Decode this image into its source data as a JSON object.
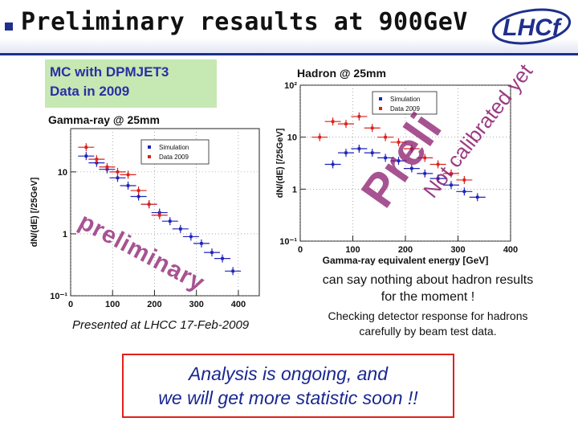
{
  "header": {
    "title": "Preliminary resaults at 900GeV",
    "logo_text": "LHCf"
  },
  "mc_box": {
    "line1": "MC with DPMJET3",
    "line2": "Data in 2009"
  },
  "presented": "Presented at LHCC 17-Feb-2009",
  "watermarks": {
    "prelim_left": "preliminary",
    "prelim_right": "Preli",
    "not_calibrated": "Not calibrated yet"
  },
  "notes": {
    "line1": "can say nothing about hadron results",
    "line2": "for the moment !",
    "check1": "Checking detector response for hadrons",
    "check2": "carefully by beam test data."
  },
  "analysis": {
    "line1": "Analysis is ongoing, and",
    "line2": "we will get more statistic soon !!"
  },
  "colors": {
    "simulation": "#1f22b8",
    "data": "#d9221c",
    "title_blue": "#1f2f8c",
    "mc_box": "#c6e8b2",
    "watermark": "#8a1a6e"
  },
  "chart_data": [
    {
      "type": "scatter",
      "title": "Gamma-ray @ 25mm",
      "xlabel": "",
      "ylabel": "dN/(dE) [/25GeV]",
      "log_y": true,
      "xlim": [
        0,
        450
      ],
      "ylim": [
        0.1,
        50
      ],
      "xticks": [
        0,
        100,
        200,
        300,
        400
      ],
      "yticks": [
        {
          "v": 10,
          "label": "10"
        },
        {
          "v": 1,
          "label": "1"
        },
        {
          "v": 0.1,
          "label": "10⁻¹"
        }
      ],
      "legend": {
        "placement": "top-right",
        "entries": [
          "Simulation",
          "Data 2009"
        ]
      },
      "series": [
        {
          "name": "Simulation",
          "color": "#1f22b8",
          "points": [
            [
              37,
              18
            ],
            [
              62,
              14
            ],
            [
              87,
              11
            ],
            [
              112,
              8
            ],
            [
              137,
              6
            ],
            [
              162,
              4
            ],
            [
              187,
              3
            ],
            [
              212,
              2.2
            ],
            [
              237,
              1.6
            ],
            [
              262,
              1.2
            ],
            [
              287,
              0.9
            ],
            [
              312,
              0.7
            ],
            [
              337,
              0.5
            ],
            [
              362,
              0.4
            ],
            [
              387,
              0.25
            ]
          ]
        },
        {
          "name": "Data 2009",
          "color": "#d9221c",
          "points": [
            [
              37,
              25
            ],
            [
              62,
              16
            ],
            [
              87,
              12
            ],
            [
              112,
              10
            ],
            [
              137,
              9
            ],
            [
              162,
              5
            ],
            [
              187,
              3
            ],
            [
              212,
              2
            ]
          ]
        }
      ]
    },
    {
      "type": "scatter",
      "title": "Hadron @ 25mm",
      "xlabel": "Gamma-ray equivalent energy [GeV]",
      "ylabel": "dN/(dE) [/25GeV]",
      "log_y": true,
      "xlim": [
        0,
        400
      ],
      "ylim": [
        0.1,
        100
      ],
      "xticks": [
        0,
        100,
        200,
        300,
        400
      ],
      "yticks": [
        {
          "v": 100,
          "label": "10²"
        },
        {
          "v": 10,
          "label": "10"
        },
        {
          "v": 1,
          "label": "1"
        },
        {
          "v": 0.1,
          "label": "10⁻¹"
        }
      ],
      "legend": {
        "placement": "top-right",
        "entries": [
          "Simulation",
          "Data 2009"
        ]
      },
      "series": [
        {
          "name": "Simulation",
          "color": "#1f22b8",
          "points": [
            [
              62,
              3
            ],
            [
              87,
              5
            ],
            [
              112,
              6
            ],
            [
              137,
              5
            ],
            [
              162,
              4
            ],
            [
              187,
              3.5
            ],
            [
              212,
              2.5
            ],
            [
              237,
              2
            ],
            [
              262,
              1.6
            ],
            [
              287,
              1.2
            ],
            [
              312,
              0.9
            ],
            [
              337,
              0.7
            ]
          ]
        },
        {
          "name": "Data 2009",
          "color": "#d9221c",
          "points": [
            [
              37,
              10
            ],
            [
              62,
              20
            ],
            [
              87,
              18
            ],
            [
              112,
              25
            ],
            [
              137,
              15
            ],
            [
              162,
              10
            ],
            [
              187,
              8
            ],
            [
              212,
              6
            ],
            [
              237,
              4
            ],
            [
              262,
              3
            ],
            [
              287,
              2
            ],
            [
              312,
              1.5
            ]
          ]
        }
      ]
    }
  ]
}
